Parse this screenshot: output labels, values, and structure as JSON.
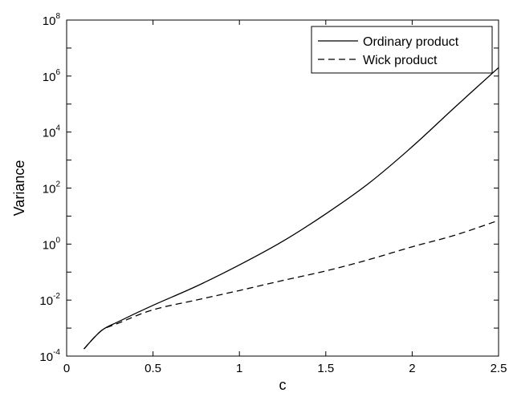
{
  "chart_data": {
    "type": "line",
    "xlabel": "c",
    "ylabel": "Variance",
    "xlim": [
      0,
      2.5
    ],
    "ylim": [
      0.0001,
      100000000
    ],
    "yscale": "log",
    "grid": false,
    "legend_placement": "top-right",
    "x_ticks": [
      {
        "value": 0,
        "label": "0"
      },
      {
        "value": 0.5,
        "label": "0.5"
      },
      {
        "value": 1,
        "label": "1"
      },
      {
        "value": 1.5,
        "label": "1.5"
      },
      {
        "value": 2,
        "label": "2"
      },
      {
        "value": 2.5,
        "label": "2.5"
      }
    ],
    "y_ticks": [
      {
        "value": 0.0001,
        "base": "10",
        "exp": "-4"
      },
      {
        "value": 0.01,
        "base": "10",
        "exp": "-2"
      },
      {
        "value": 1,
        "base": "10",
        "exp": "0"
      },
      {
        "value": 100,
        "base": "10",
        "exp": "2"
      },
      {
        "value": 10000,
        "base": "10",
        "exp": "4"
      },
      {
        "value": 1000000,
        "base": "10",
        "exp": "6"
      },
      {
        "value": 100000000,
        "base": "10",
        "exp": "8"
      }
    ],
    "series": [
      {
        "name": "Ordinary product",
        "style": "solid",
        "color": "#000000",
        "x": [
          0.1,
          0.2,
          0.3,
          0.5,
          0.75,
          1.0,
          1.25,
          1.5,
          1.75,
          2.0,
          2.25,
          2.5
        ],
        "y": [
          0.00018,
          0.0008,
          0.0017,
          0.0065,
          0.031,
          0.18,
          1.25,
          12,
          150,
          3000,
          80000,
          2000000
        ]
      },
      {
        "name": "Wick product",
        "style": "dashed",
        "color": "#000000",
        "x": [
          0.1,
          0.2,
          0.3,
          0.5,
          0.75,
          1.0,
          1.25,
          1.5,
          1.75,
          2.0,
          2.25,
          2.5
        ],
        "y": [
          0.00018,
          0.0008,
          0.0015,
          0.0045,
          0.01,
          0.022,
          0.05,
          0.11,
          0.28,
          0.8,
          2.1,
          7
        ]
      }
    ]
  }
}
